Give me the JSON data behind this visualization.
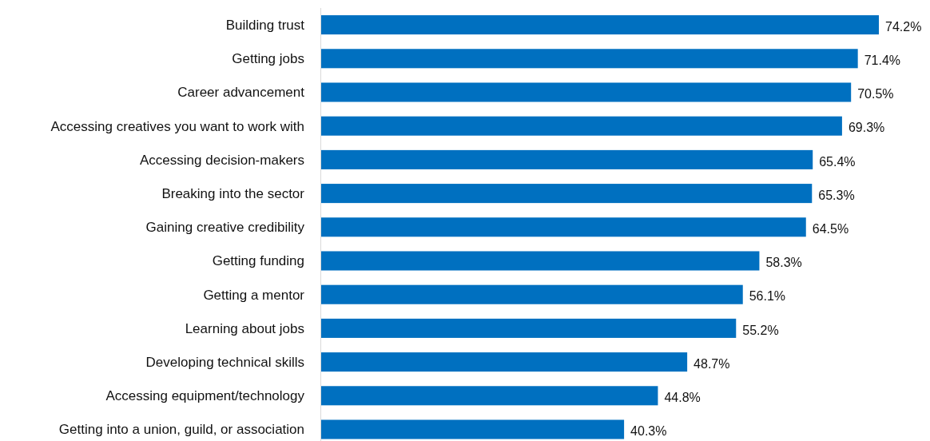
{
  "chart_data": {
    "type": "bar",
    "orientation": "horizontal",
    "categories": [
      "Building trust",
      "Getting jobs",
      "Career advancement",
      "Accessing creatives you want to work with",
      "Accessing decision-makers",
      "Breaking into the sector",
      "Gaining creative credibility",
      "Getting funding",
      "Getting a mentor",
      "Learning about jobs",
      "Developing technical skills",
      "Accessing equipment/technology",
      "Getting into a union, guild, or association"
    ],
    "values": [
      74.2,
      71.4,
      70.5,
      69.3,
      65.4,
      65.3,
      64.5,
      58.3,
      56.1,
      55.2,
      48.7,
      44.8,
      40.3
    ],
    "value_labels": [
      "74.2%",
      "71.4%",
      "70.5%",
      "69.3%",
      "65.4%",
      "65.3%",
      "64.5%",
      "58.3%",
      "56.1%",
      "55.2%",
      "48.7%",
      "44.8%",
      "40.3%"
    ],
    "color": "#0070c0"
  }
}
